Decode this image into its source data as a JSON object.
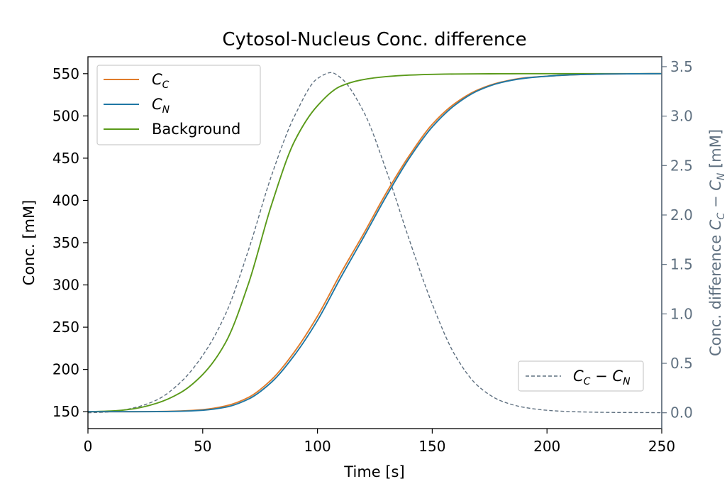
{
  "chart_data": {
    "type": "line",
    "title": "Cytosol-Nucleus Conc. difference",
    "xlabel": "Time [s]",
    "ylabel": "Conc. [mM]",
    "ylabel_right": "Conc. difference C_C − C_N [mM]",
    "xlim": [
      0,
      250
    ],
    "ylim": [
      130,
      570
    ],
    "ylim_right": [
      -0.16,
      3.6
    ],
    "x_ticks": [
      0,
      50,
      100,
      150,
      200,
      250
    ],
    "y_ticks": [
      150,
      200,
      250,
      300,
      350,
      400,
      450,
      500,
      550
    ],
    "y_ticks_right": [
      0.0,
      0.5,
      1.0,
      1.5,
      2.0,
      2.5,
      3.0,
      3.5
    ],
    "grid": false,
    "legend_left_placement": "top-left",
    "legend_right_placement": "bottom-right",
    "colors": {
      "cc": "#e07b2a",
      "cn": "#1f77a4",
      "background": "#5a9a1a",
      "diff": "#5f7080",
      "axis": "#000000",
      "right_axis": "#5f7080"
    },
    "series": [
      {
        "name": "C_C",
        "axis": "left",
        "style": "solid",
        "x": [
          0,
          10,
          20,
          30,
          40,
          50,
          60,
          70,
          80,
          90,
          100,
          110,
          120,
          130,
          140,
          150,
          160,
          170,
          180,
          190,
          200,
          210,
          220,
          230,
          240,
          250
        ],
        "y": [
          150,
          150,
          150,
          150.2,
          150.8,
          152.4,
          156.8,
          167,
          188,
          221,
          263,
          313,
          360,
          409,
          453,
          490,
          515,
          531,
          540,
          545,
          547,
          548.6,
          549.3,
          549.7,
          549.9,
          550
        ]
      },
      {
        "name": "C_N",
        "axis": "left",
        "style": "solid",
        "x": [
          0,
          10,
          20,
          30,
          40,
          50,
          60,
          70,
          80,
          90,
          100,
          110,
          120,
          130,
          140,
          150,
          160,
          170,
          180,
          190,
          200,
          210,
          220,
          230,
          240,
          250
        ],
        "y": [
          150,
          150,
          150,
          150.1,
          150.5,
          151.7,
          155.3,
          165,
          185,
          217,
          258,
          308,
          356,
          405,
          450,
          487,
          513,
          530,
          539.5,
          544.5,
          547,
          548.6,
          549.3,
          549.7,
          549.9,
          550
        ]
      },
      {
        "name": "Background",
        "axis": "left",
        "style": "solid",
        "x": [
          0,
          10,
          20,
          30,
          40,
          50,
          60,
          70,
          80,
          90,
          100,
          110,
          120,
          130,
          140,
          150,
          160,
          170,
          180,
          190,
          200,
          210,
          220,
          230,
          240,
          250
        ],
        "y": [
          150,
          150.8,
          153.5,
          160,
          172,
          194,
          232,
          302,
          395,
          470,
          512,
          535,
          543,
          546.5,
          548.3,
          549.2,
          549.6,
          549.8,
          549.9,
          550,
          550,
          550,
          550,
          550,
          550,
          550
        ]
      },
      {
        "name": "C_C − C_N",
        "axis": "right",
        "style": "dashed",
        "x": [
          0,
          10,
          20,
          30,
          40,
          50,
          60,
          70,
          80,
          90,
          100,
          106,
          110,
          120,
          130,
          140,
          150,
          160,
          170,
          180,
          190,
          200,
          210,
          220,
          230,
          240,
          250
        ],
        "y": [
          0.0,
          0.01,
          0.05,
          0.13,
          0.3,
          0.58,
          1.0,
          1.65,
          2.4,
          3.0,
          3.38,
          3.44,
          3.39,
          3.05,
          2.45,
          1.75,
          1.1,
          0.58,
          0.27,
          0.12,
          0.055,
          0.025,
          0.012,
          0.006,
          0.003,
          0.002,
          0.001
        ]
      }
    ],
    "legend_left": [
      {
        "series": "C_C",
        "base": "C",
        "sub": "C"
      },
      {
        "series": "C_N",
        "base": "C",
        "sub": "N"
      },
      {
        "series": "Background",
        "text": "Background"
      }
    ],
    "legend_right": [
      {
        "series": "C_C − C_N",
        "base1": "C",
        "sub1": "C",
        "op": " − ",
        "base2": "C",
        "sub2": "N"
      }
    ]
  }
}
